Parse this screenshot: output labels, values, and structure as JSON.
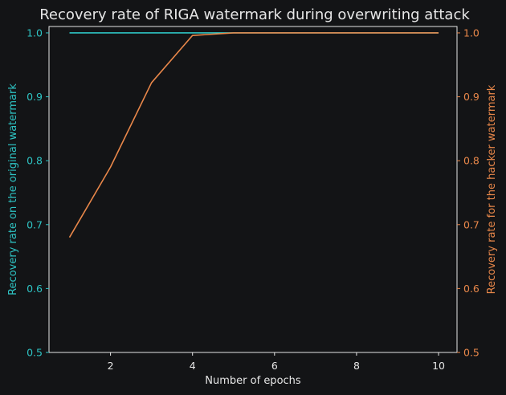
{
  "chart_data": {
    "type": "line",
    "title": "Recovery rate of RIGA watermark during overwriting attack",
    "xlabel": "Number of epochs",
    "ylabel_left": "Recovery rate on the original watermark",
    "ylabel_right": "Recovery rate for the hacker watermark",
    "x": [
      1,
      2,
      3,
      4,
      5,
      6,
      7,
      8,
      9,
      10
    ],
    "xlim": [
      0.5,
      10.45
    ],
    "xticks": [
      2,
      4,
      6,
      8,
      10
    ],
    "ylim_left": [
      0.5,
      1.01
    ],
    "ylim_right": [
      0.5,
      1.01
    ],
    "yticks": [
      0.5,
      0.6,
      0.7,
      0.8,
      0.9,
      1.0
    ],
    "grid": false,
    "series": [
      {
        "axis": "left",
        "color": "#2ec4c4",
        "values": [
          1.0,
          1.0,
          1.0,
          1.0,
          1.0,
          1.0,
          1.0,
          1.0,
          1.0,
          1.0
        ]
      },
      {
        "axis": "right",
        "color": "#e8874a",
        "values": [
          0.68,
          0.79,
          0.922,
          0.996,
          1.0,
          1.0,
          1.0,
          1.0,
          1.0,
          1.0
        ]
      }
    ],
    "colors": {
      "background": "#131416",
      "axis": "#e6e6e6",
      "left_axis": "#2ec4c4",
      "right_axis": "#e8874a"
    }
  }
}
